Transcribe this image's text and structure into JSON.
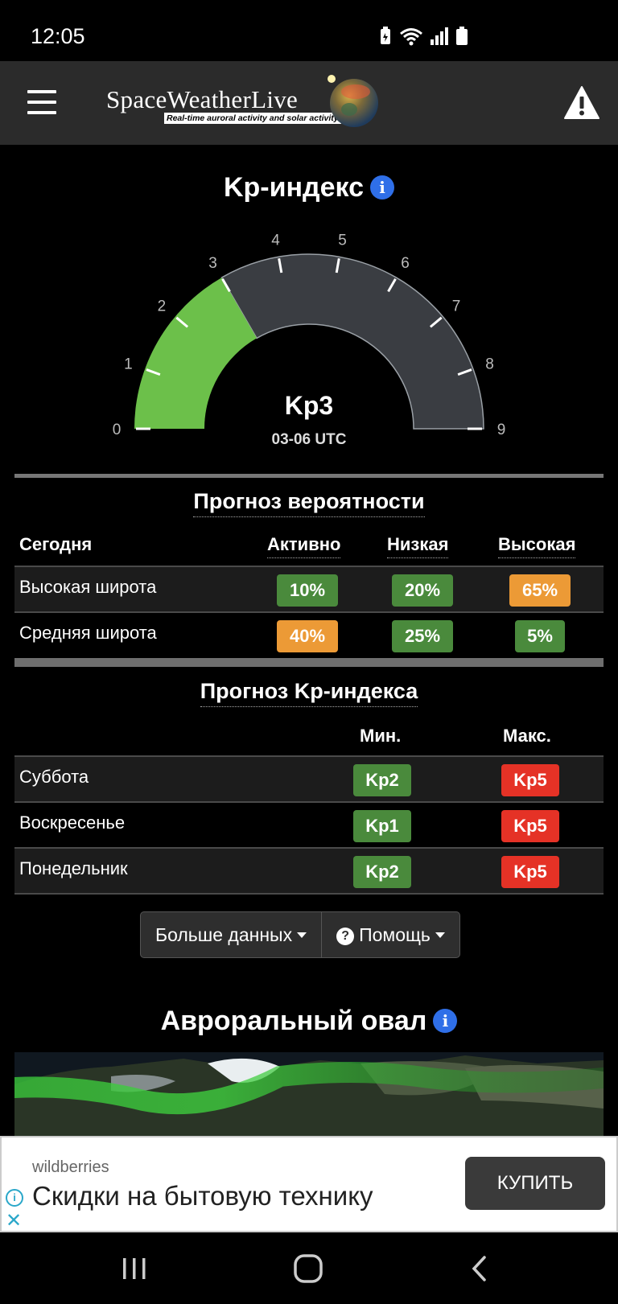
{
  "status_bar": {
    "time": "12:05"
  },
  "header": {
    "brand": "SpaceWeatherLive",
    "tagline": "Real-time auroral activity and solar activity"
  },
  "kp": {
    "title": "Kp-индекс",
    "value_label": "Kp3",
    "time_label": "03-06 UTC",
    "current_value": 3,
    "scale_labels": [
      "0",
      "1",
      "2",
      "3",
      "4",
      "5",
      "6",
      "7",
      "8",
      "9"
    ],
    "gauge_color": "#6cc04a"
  },
  "probability": {
    "title": "Прогноз вероятности",
    "headers": {
      "day": "Сегодня",
      "active": "Активно",
      "low": "Низкая",
      "high": "Высокая"
    },
    "rows": [
      {
        "label": "Высокая широта",
        "active": "10%",
        "low": "20%",
        "high": "65%"
      },
      {
        "label": "Средняя широта",
        "active": "40%",
        "low": "25%",
        "high": "5%"
      }
    ]
  },
  "kp_forecast": {
    "title": "Прогноз Kp-индекса",
    "headers": {
      "min": "Мин.",
      "max": "Макс."
    },
    "rows": [
      {
        "label": "Суббота",
        "min": "Kp2",
        "max": "Kp5"
      },
      {
        "label": "Воскресенье",
        "min": "Kp1",
        "max": "Kp5"
      },
      {
        "label": "Понедельник",
        "min": "Kp2",
        "max": "Kp5"
      }
    ]
  },
  "buttons": {
    "more_data": "Больше данных",
    "help": "Помощь"
  },
  "aurora": {
    "title": "Авроральный овал"
  },
  "ad": {
    "sponsor": "wildberries",
    "headline": "Скидки на бытовую технику",
    "cta": "КУПИТЬ"
  },
  "colors": {
    "green": "#4a8a3c",
    "orange": "#ec9a36",
    "red": "#e53226",
    "info_blue": "#2f6fe8"
  }
}
